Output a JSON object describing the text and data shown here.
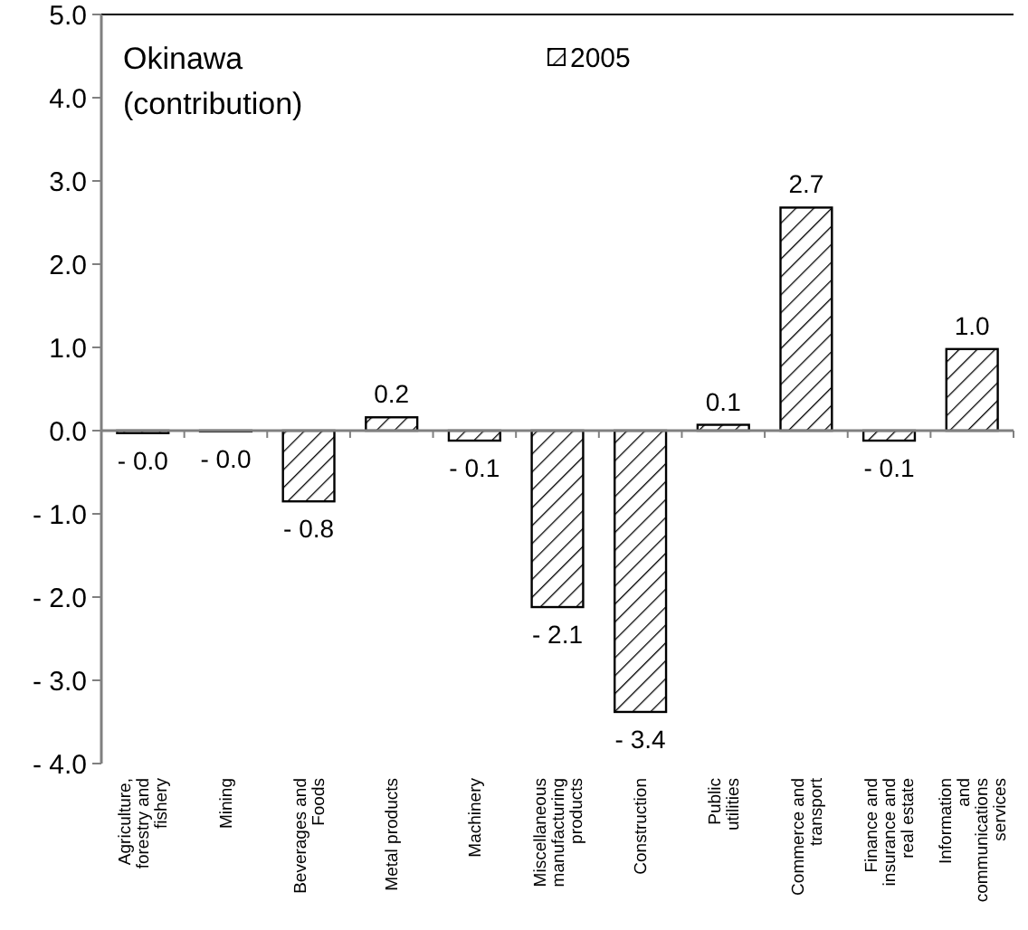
{
  "chart_data": {
    "type": "bar",
    "title": "Okinawa",
    "subtitle": "(contribution)",
    "categories": [
      "Agriculture, forestry and fishery",
      "Mining",
      "Beverages and Foods",
      "Metal products",
      "Machinery",
      "Miscellaneous manufacturing products",
      "Construction",
      "Public utilities",
      "Commerce and transport",
      "Finance and insurance and real estate",
      "Information and communications services"
    ],
    "series": [
      {
        "name": "2005",
        "color": "#000000",
        "values": [
          -0.03,
          -0.01,
          -0.85,
          0.16,
          -0.12,
          -2.12,
          -3.38,
          0.07,
          2.68,
          -0.12,
          0.98
        ],
        "value_labels": [
          "- 0.0",
          "- 0.0",
          "- 0.8",
          "0.2",
          "- 0.1",
          "- 2.1",
          "- 3.4",
          "0.1",
          "2.7",
          "- 0.1",
          "1.0"
        ]
      }
    ],
    "ylim": [
      -4,
      5
    ],
    "yticks": [
      {
        "value": 5,
        "label": "5.0"
      },
      {
        "value": 4,
        "label": "4.0"
      },
      {
        "value": 3,
        "label": "3.0"
      },
      {
        "value": 2,
        "label": "2.0"
      },
      {
        "value": 1,
        "label": "1.0"
      },
      {
        "value": 0,
        "label": "0.0"
      },
      {
        "value": -1,
        "label": "- 1.0"
      },
      {
        "value": -2,
        "label": "- 2.0"
      },
      {
        "value": -3,
        "label": "- 3.0"
      },
      {
        "value": -4,
        "label": "- 4.0"
      }
    ],
    "legend": "top"
  }
}
